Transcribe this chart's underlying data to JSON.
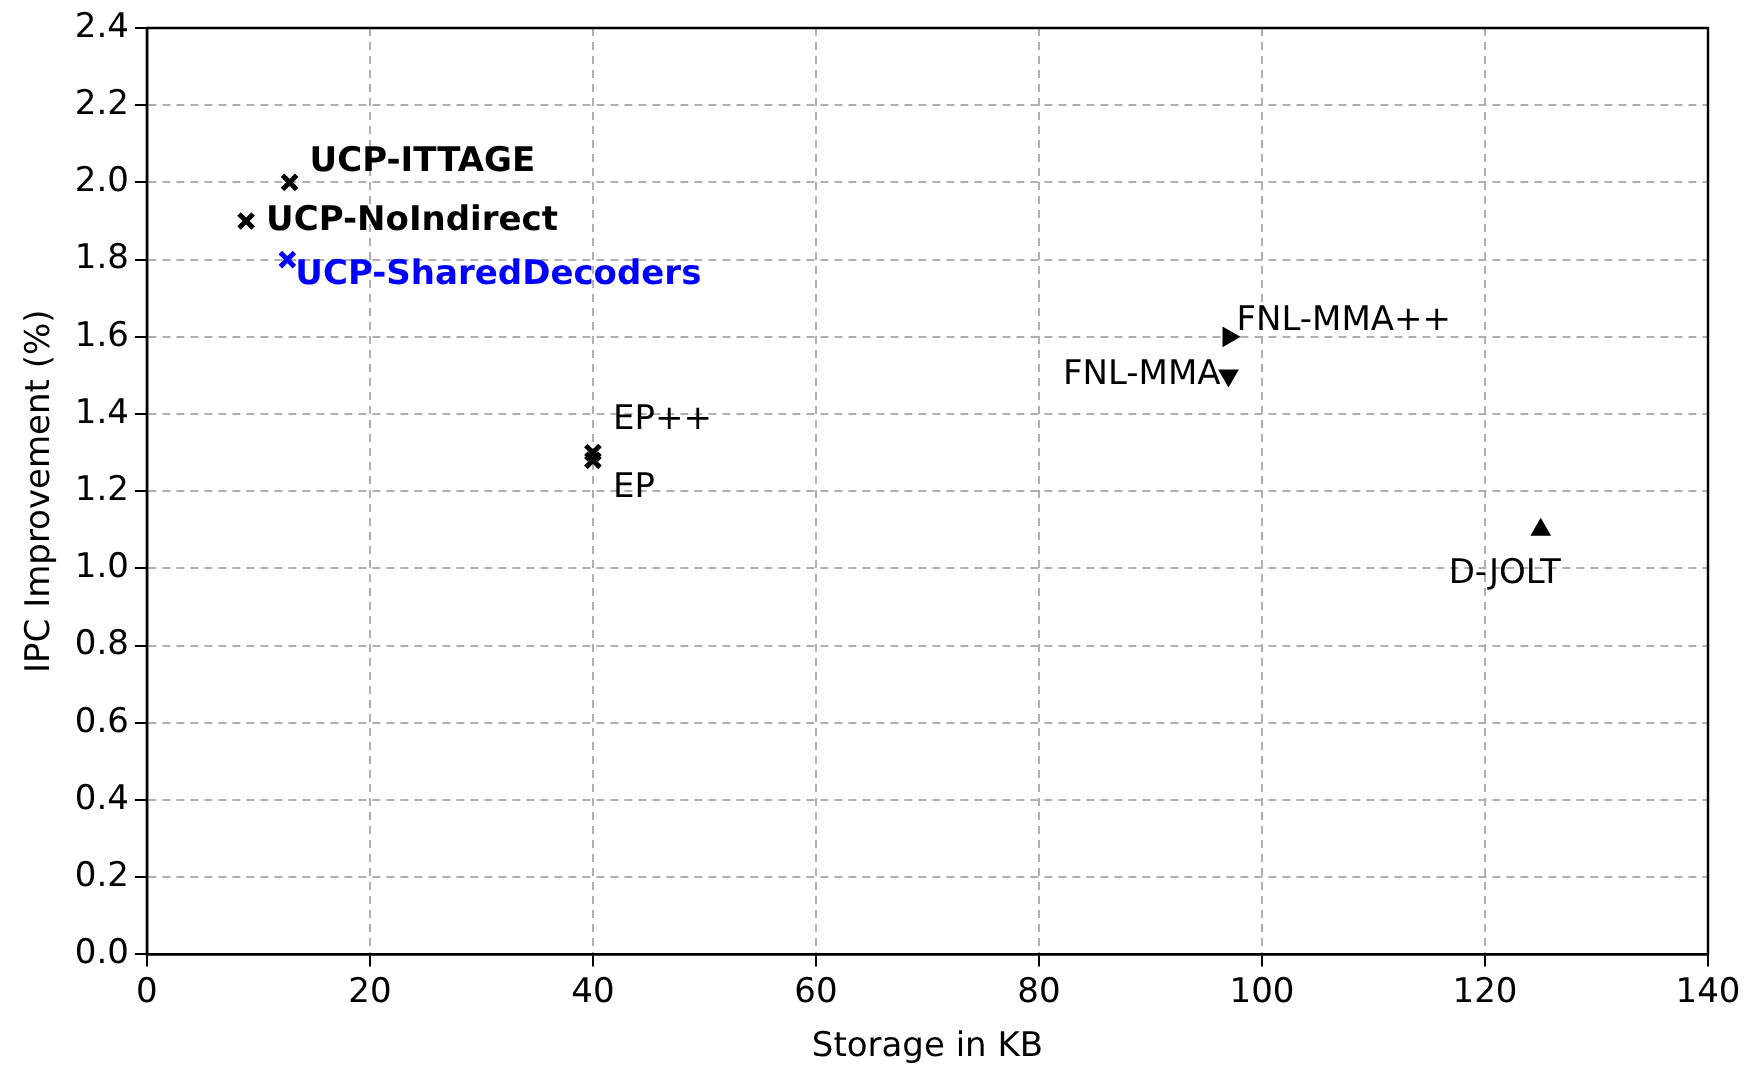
{
  "chart_data": {
    "type": "scatter",
    "xlabel": "Storage in KB",
    "ylabel": "IPC Improvement (%)",
    "xlim": [
      0,
      140
    ],
    "xticks": [
      0,
      20,
      40,
      60,
      80,
      100,
      120,
      140
    ],
    "ylim": [
      0,
      2.4
    ],
    "yticks": [
      {
        "value": 0,
        "label": "0.0"
      },
      {
        "value": 0.2,
        "label": "0.2"
      },
      {
        "value": 0.4,
        "label": "0.4"
      },
      {
        "value": 0.6,
        "label": "0.6"
      },
      {
        "value": 0.8,
        "label": "0.8"
      },
      {
        "value": 1,
        "label": "1.0"
      },
      {
        "value": 1.2,
        "label": "1.2"
      },
      {
        "value": 1.4,
        "label": "1.4"
      },
      {
        "value": 1.6,
        "label": "1.6"
      },
      {
        "value": 1.8,
        "label": "1.8"
      },
      {
        "value": 2,
        "label": "2.0"
      },
      {
        "value": 2.2,
        "label": "2.2"
      },
      {
        "value": 2.4,
        "label": "2.4"
      }
    ],
    "grid": true,
    "legend": false,
    "series": [
      {
        "name": "UCP-ITTAGE",
        "color": "#000000",
        "marker": "cross",
        "x": [
          12.8
        ],
        "values": [
          2.0
        ]
      },
      {
        "name": "UCP-NoIndirect",
        "color": "#000000",
        "marker": "cross",
        "x": [
          8.9
        ],
        "values": [
          1.9
        ]
      },
      {
        "name": "UCP-SharedDecoders",
        "color": "#0000ff",
        "marker": "cross",
        "x": [
          12.6
        ],
        "values": [
          1.8
        ]
      },
      {
        "name": "EP++",
        "color": "#000000",
        "marker": "cross",
        "x": [
          40
        ],
        "values": [
          1.3
        ]
      },
      {
        "name": "EP",
        "color": "#000000",
        "marker": "cross",
        "x": [
          40
        ],
        "values": [
          1.28
        ]
      },
      {
        "name": "FNL-MMA++",
        "color": "#000000",
        "marker": "triangle",
        "x": [
          97
        ],
        "values": [
          1.6
        ]
      },
      {
        "name": "FNL-MMA",
        "color": "#000000",
        "marker": "triangle",
        "x": [
          97
        ],
        "values": [
          1.5
        ]
      },
      {
        "name": "D-JOLT",
        "color": "#000000",
        "marker": "triangle",
        "x": [
          125
        ],
        "values": [
          1.1
        ]
      }
    ]
  }
}
